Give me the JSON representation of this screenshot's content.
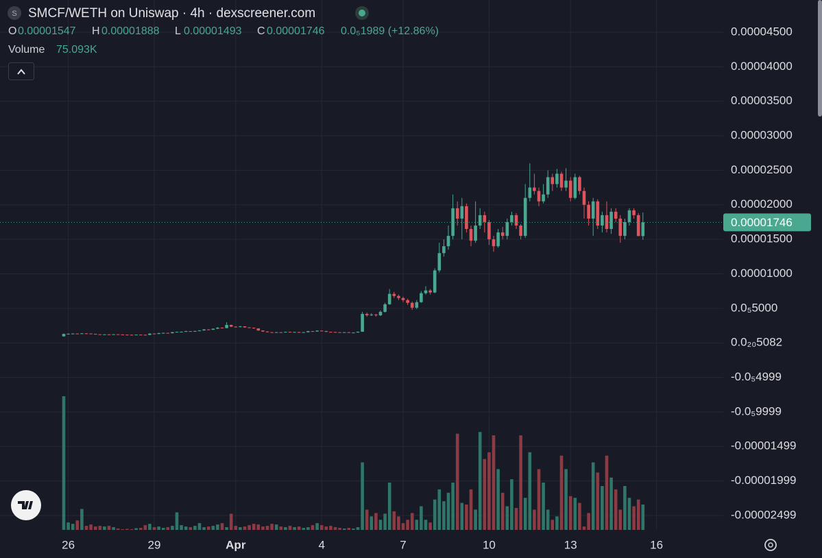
{
  "chart_data": {
    "type": "candlestick",
    "icon_letter": "S",
    "title": "SMCF/WETH on Uniswap · 4h · dexscreener.com",
    "legend": {
      "o_key": "O",
      "o": "0.00001547",
      "h_key": "H",
      "h": "0.00001888",
      "l_key": "L",
      "l": "0.00001493",
      "c_key": "C",
      "c": "0.00001746",
      "change": "0.0₅1989 (+12.86%)"
    },
    "volume_label": "Volume",
    "volume_readout": "75.093K",
    "last_price_label": "0.00001746",
    "up_color": "#4aa790",
    "down_color": "#e0545d",
    "volume_up_color": "#2f7668",
    "volume_down_color": "#8c3a44",
    "grid": true,
    "ylim": [
      -2.708e-05,
      4.966e-05
    ],
    "yticks": [
      {
        "value": 4.5e-05,
        "label": "0.00004500"
      },
      {
        "value": 4e-05,
        "label": "0.00004000"
      },
      {
        "value": 3.5e-05,
        "label": "0.00003500"
      },
      {
        "value": 3e-05,
        "label": "0.00003000"
      },
      {
        "value": 2.5e-05,
        "label": "0.00002500"
      },
      {
        "value": 2e-05,
        "label": "0.00002000"
      },
      {
        "value": 1.5e-05,
        "label": "0.00001500"
      },
      {
        "value": 1e-05,
        "label": "0.00001000"
      },
      {
        "value": 5e-06,
        "label": "0.0₅5000"
      },
      {
        "value": 5.082e-25,
        "label": "0.0₂₀5082"
      },
      {
        "value": -4.999e-06,
        "label": "-0.0₅4999"
      },
      {
        "value": -9.999e-06,
        "label": "-0.0₅9999"
      },
      {
        "value": -1.499e-05,
        "label": "-0.00001499"
      },
      {
        "value": -1.999e-05,
        "label": "-0.00001999"
      },
      {
        "value": -2.499e-05,
        "label": "-0.00002499"
      }
    ],
    "categories": [
      null,
      "26",
      null,
      null,
      null,
      null,
      null,
      null,
      null,
      null,
      null,
      null,
      null,
      null,
      null,
      null,
      null,
      null,
      null,
      null,
      "29",
      null,
      null,
      null,
      null,
      null,
      null,
      null,
      null,
      null,
      null,
      null,
      null,
      null,
      null,
      null,
      null,
      null,
      "Apr",
      null,
      null,
      null,
      null,
      null,
      null,
      null,
      null,
      null,
      null,
      null,
      null,
      null,
      null,
      null,
      null,
      null,
      null,
      "4",
      null,
      null,
      null,
      null,
      null,
      null,
      null,
      null,
      null,
      null,
      null,
      null,
      null,
      null,
      null,
      null,
      null,
      "7",
      null,
      null,
      null,
      null,
      null,
      null,
      null,
      null,
      null,
      null,
      null,
      null,
      null,
      null,
      null,
      null,
      null,
      null,
      "10",
      null,
      null,
      null,
      null,
      null,
      null,
      null,
      null,
      null,
      null,
      null,
      null,
      null,
      null,
      null,
      null,
      null,
      "13",
      null,
      null,
      null,
      null,
      null,
      null,
      null,
      null,
      null,
      null,
      null,
      null,
      null,
      null,
      null,
      null,
      null,
      null,
      "16"
    ],
    "open": [
      9.5e-07,
      1.3e-06,
      1.32e-06,
      1.35e-06,
      1.33e-06,
      1.38e-06,
      1.36e-06,
      1.3e-06,
      1.25e-06,
      1.22e-06,
      1.24e-06,
      1.23e-06,
      1.25e-06,
      1.22e-06,
      1.2e-06,
      1.18e-06,
      1.17e-06,
      1.2e-06,
      1.18e-06,
      1.15e-06,
      1.35e-06,
      1.3e-06,
      1.42e-06,
      1.45e-06,
      1.4e-06,
      1.55e-06,
      1.6e-06,
      1.62e-06,
      1.7e-06,
      1.65e-06,
      1.72e-06,
      1.8e-06,
      1.95e-06,
      1.9e-06,
      2.05e-06,
      2.2e-06,
      2.15e-06,
      2.6e-06,
      2.35e-06,
      2.3e-06,
      2.4e-06,
      2.25e-06,
      2.2e-06,
      2.1e-06,
      1.8e-06,
      1.65e-06,
      1.55e-06,
      1.5e-06,
      1.55e-06,
      1.52e-06,
      1.6e-06,
      1.55e-06,
      1.58e-06,
      1.5e-06,
      1.55e-06,
      1.7e-06,
      1.65e-06,
      1.78e-06,
      1.72e-06,
      1.6e-06,
      1.58e-06,
      1.55e-06,
      1.5e-06,
      1.55e-06,
      1.48e-06,
      1.5e-06,
      1.62e-06,
      4.2e-06,
      4e-06,
      4.1e-06,
      4e-06,
      4.5e-06,
      5.6e-06,
      7.1e-06,
      6.8e-06,
      6.5e-06,
      6.2e-06,
      5.8e-06,
      5.1e-06,
      5.9e-06,
      7.2e-06,
      7.6e-06,
      7.3e-06,
      1.05e-05,
      1.3e-05,
      1.4e-05,
      1.55e-05,
      1.95e-05,
      1.8e-05,
      1.98e-05,
      1.65e-05,
      1.48e-05,
      1.7e-05,
      1.85e-05,
      1.75e-05,
      1.5e-05,
      1.4e-05,
      1.6e-05,
      1.55e-05,
      1.75e-05,
      1.85e-05,
      1.7e-05,
      1.55e-05,
      2.1e-05,
      2.25e-05,
      2.2e-05,
      2.05e-05,
      2.15e-05,
      2.4e-05,
      2.3e-05,
      2.45e-05,
      2.25e-05,
      2.35e-05,
      2.1e-05,
      2.4e-05,
      2.2e-05,
      2e-05,
      1.8e-05,
      2.05e-05,
      1.7e-05,
      1.85e-05,
      1.65e-05,
      1.9e-05,
      1.8e-05,
      1.55e-05,
      1.75e-05,
      1.92e-05,
      1.85e-05,
      1.547e-05,
      null,
      null,
      null
    ],
    "high": [
      1.35e-06,
      1.38e-06,
      1.4e-06,
      1.38e-06,
      1.42e-06,
      1.4e-06,
      1.38e-06,
      1.32e-06,
      1.27e-06,
      1.26e-06,
      1.26e-06,
      1.27e-06,
      1.26e-06,
      1.24e-06,
      1.22e-06,
      1.2e-06,
      1.22e-06,
      1.22e-06,
      1.2e-06,
      1.4e-06,
      1.38e-06,
      1.45e-06,
      1.5e-06,
      1.48e-06,
      1.6e-06,
      1.65e-06,
      1.66e-06,
      1.75e-06,
      1.72e-06,
      1.76e-06,
      1.85e-06,
      2e-06,
      1.98e-06,
      2.1e-06,
      2.3e-06,
      2.25e-06,
      3e-06,
      2.65e-06,
      2.4e-06,
      2.45e-06,
      2.42e-06,
      2.28e-06,
      2.22e-06,
      2.12e-06,
      1.82e-06,
      1.68e-06,
      1.58e-06,
      1.58e-06,
      1.57e-06,
      1.63e-06,
      1.62e-06,
      1.62e-06,
      1.6e-06,
      1.58e-06,
      1.75e-06,
      1.72e-06,
      1.82e-06,
      1.8e-06,
      1.74e-06,
      1.62e-06,
      1.6e-06,
      1.57e-06,
      1.58e-06,
      1.57e-06,
      1.53e-06,
      1.65e-06,
      4.5e-06,
      4.4e-06,
      4.3e-06,
      4.2e-06,
      4.7e-06,
      5.8e-06,
      7.8e-06,
      7.4e-06,
      7e-06,
      6.7e-06,
      6.4e-06,
      6e-06,
      6.2e-06,
      7.5e-06,
      8.2e-06,
      7.8e-06,
      1.08e-05,
      1.45e-05,
      1.5e-05,
      1.7e-05,
      2.15e-05,
      2.05e-05,
      2.1e-05,
      2.02e-05,
      1.7e-05,
      2.05e-05,
      1.95e-05,
      1.9e-05,
      1.78e-05,
      1.55e-05,
      1.65e-05,
      1.68e-05,
      1.8e-05,
      1.9e-05,
      1.88e-05,
      1.72e-05,
      2.3e-05,
      2.6e-05,
      2.45e-05,
      2.25e-05,
      2.3e-05,
      2.5e-05,
      2.45e-05,
      2.52e-05,
      2.48e-05,
      2.53e-05,
      2.4e-05,
      2.45e-05,
      2.42e-05,
      2.25e-05,
      2.05e-05,
      2.1e-05,
      2.08e-05,
      1.9e-05,
      2.05e-05,
      1.95e-05,
      1.95e-05,
      1.85e-05,
      1.8e-05,
      1.95e-05,
      1.95e-05,
      1.88e-05,
      1.888e-05,
      null,
      null,
      null
    ],
    "low": [
      9e-07,
      1.28e-06,
      1.3e-06,
      1.3e-06,
      1.31e-06,
      1.33e-06,
      1.28e-06,
      1.23e-06,
      1.2e-06,
      1.2e-06,
      1.21e-06,
      1.21e-06,
      1.2e-06,
      1.18e-06,
      1.16e-06,
      1.15e-06,
      1.15e-06,
      1.16e-06,
      1.13e-06,
      1.13e-06,
      1.28e-06,
      1.28e-06,
      1.4e-06,
      1.38e-06,
      1.38e-06,
      1.52e-06,
      1.58e-06,
      1.6e-06,
      1.62e-06,
      1.63e-06,
      1.7e-06,
      1.78e-06,
      1.85e-06,
      1.88e-06,
      2e-06,
      2.1e-06,
      2.12e-06,
      2.3e-06,
      2.25e-06,
      2.25e-06,
      2.2e-06,
      2.15e-06,
      2.05e-06,
      1.75e-06,
      1.6e-06,
      1.5e-06,
      1.46e-06,
      1.47e-06,
      1.48e-06,
      1.5e-06,
      1.52e-06,
      1.53e-06,
      1.46e-06,
      1.48e-06,
      1.52e-06,
      1.6e-06,
      1.62e-06,
      1.68e-06,
      1.56e-06,
      1.55e-06,
      1.52e-06,
      1.47e-06,
      1.48e-06,
      1.45e-06,
      1.45e-06,
      1.48e-06,
      1.6e-06,
      3.8e-06,
      3.9e-06,
      3.8e-06,
      3.9e-06,
      4.4e-06,
      5.5e-06,
      6.5e-06,
      6.2e-06,
      5.9e-06,
      5.5e-06,
      4.8e-06,
      4.9e-06,
      5.8e-06,
      7e-06,
      7e-06,
      7.2e-06,
      1.02e-05,
      1.25e-05,
      1.35e-05,
      1.5e-05,
      1.7e-05,
      1.5e-05,
      1.6e-05,
      1.4e-05,
      1.45e-05,
      1.65e-05,
      1.6e-05,
      1.42e-05,
      1.32e-05,
      1.38e-05,
      1.5e-05,
      1.5e-05,
      1.7e-05,
      1.65e-05,
      1.5e-05,
      1.52e-05,
      2.05e-05,
      2.15e-05,
      1.98e-05,
      2.02e-05,
      2.1e-05,
      2.2e-05,
      2.25e-05,
      2.2e-05,
      2.2e-05,
      2.05e-05,
      2.08e-05,
      2.15e-05,
      1.8e-05,
      1.7e-05,
      1.55e-05,
      1.65e-05,
      1.6e-05,
      1.6e-05,
      1.58e-05,
      1.75e-05,
      1.45e-05,
      1.5e-05,
      1.7e-05,
      1.8e-05,
      1.55e-05,
      1.493e-05,
      null,
      null,
      null
    ],
    "close": [
      1.3e-06,
      1.32e-06,
      1.35e-06,
      1.33e-06,
      1.38e-06,
      1.36e-06,
      1.3e-06,
      1.25e-06,
      1.22e-06,
      1.24e-06,
      1.23e-06,
      1.25e-06,
      1.22e-06,
      1.2e-06,
      1.18e-06,
      1.17e-06,
      1.2e-06,
      1.18e-06,
      1.15e-06,
      1.35e-06,
      1.3e-06,
      1.42e-06,
      1.45e-06,
      1.4e-06,
      1.55e-06,
      1.6e-06,
      1.62e-06,
      1.7e-06,
      1.65e-06,
      1.72e-06,
      1.8e-06,
      1.95e-06,
      1.9e-06,
      2.05e-06,
      2.2e-06,
      2.15e-06,
      2.6e-06,
      2.35e-06,
      2.3e-06,
      2.4e-06,
      2.25e-06,
      2.2e-06,
      2.1e-06,
      1.8e-06,
      1.65e-06,
      1.55e-06,
      1.5e-06,
      1.55e-06,
      1.52e-06,
      1.6e-06,
      1.55e-06,
      1.58e-06,
      1.5e-06,
      1.55e-06,
      1.7e-06,
      1.65e-06,
      1.78e-06,
      1.72e-06,
      1.6e-06,
      1.58e-06,
      1.55e-06,
      1.5e-06,
      1.55e-06,
      1.48e-06,
      1.5e-06,
      1.62e-06,
      4.2e-06,
      4e-06,
      4.1e-06,
      4e-06,
      4.5e-06,
      5.6e-06,
      7.1e-06,
      6.8e-06,
      6.5e-06,
      6.2e-06,
      5.8e-06,
      5.1e-06,
      5.9e-06,
      7.2e-06,
      7.6e-06,
      7.3e-06,
      1.05e-05,
      1.3e-05,
      1.4e-05,
      1.55e-05,
      1.95e-05,
      1.8e-05,
      1.98e-05,
      1.65e-05,
      1.48e-05,
      1.7e-05,
      1.85e-05,
      1.75e-05,
      1.5e-05,
      1.4e-05,
      1.6e-05,
      1.55e-05,
      1.75e-05,
      1.85e-05,
      1.7e-05,
      1.55e-05,
      2.1e-05,
      2.25e-05,
      2.2e-05,
      2.05e-05,
      2.15e-05,
      2.4e-05,
      2.3e-05,
      2.45e-05,
      2.25e-05,
      2.35e-05,
      2.1e-05,
      2.4e-05,
      2.2e-05,
      2e-05,
      1.8e-05,
      2.05e-05,
      1.7e-05,
      1.85e-05,
      1.65e-05,
      1.9e-05,
      1.8e-05,
      1.55e-05,
      1.75e-05,
      1.92e-05,
      1.85e-05,
      1.547e-05,
      1.746e-05,
      null,
      null,
      null
    ],
    "volume": [
      396000,
      22000,
      18000,
      28000,
      62000,
      12000,
      16000,
      10000,
      12000,
      10000,
      12000,
      8000,
      4000,
      2000,
      3000,
      2000,
      5000,
      6000,
      14000,
      18000,
      8000,
      10000,
      6000,
      8000,
      12000,
      52000,
      14000,
      10000,
      8000,
      12000,
      20000,
      8000,
      10000,
      12000,
      16000,
      20000,
      8000,
      48000,
      12000,
      8000,
      10000,
      14000,
      18000,
      16000,
      10000,
      12000,
      18000,
      16000,
      10000,
      8000,
      12000,
      8000,
      10000,
      6000,
      8000,
      14000,
      20000,
      14000,
      10000,
      12000,
      8000,
      6000,
      4000,
      6000,
      4000,
      8000,
      200000,
      60000,
      40000,
      50000,
      30000,
      48000,
      140000,
      55000,
      40000,
      20000,
      30000,
      50000,
      30000,
      70000,
      30000,
      22000,
      90000,
      120000,
      85000,
      110000,
      140000,
      285000,
      80000,
      75000,
      120000,
      60000,
      290000,
      210000,
      230000,
      280000,
      180000,
      110000,
      70000,
      150000,
      65000,
      280000,
      95000,
      230000,
      60000,
      180000,
      140000,
      60000,
      30000,
      40000,
      220000,
      180000,
      100000,
      95000,
      80000,
      10000,
      50000,
      200000,
      170000,
      130000,
      220000,
      155000,
      120000,
      60000,
      130000,
      95000,
      70000,
      90000,
      75093,
      null,
      null,
      null
    ]
  }
}
